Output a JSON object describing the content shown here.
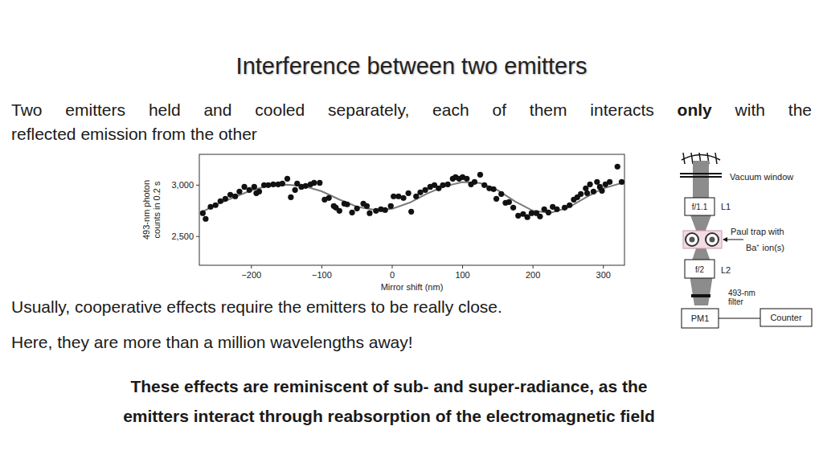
{
  "slide": {
    "title": "Interference between two emitters",
    "intro": [
      {
        "text": "Two emitters held and cooled separately, each of them interacts ",
        "bold": "only",
        "after": " with the"
      },
      {
        "text": "reflected emission from the other"
      }
    ],
    "notes": [
      "Usually, cooperative effects require the emitters to be really close.",
      "Here, they are more than a million wavelengths away!"
    ],
    "conclusion": [
      "These effects are reminiscent of sub- and super-radiance, as the",
      "emitters interact through reabsorption of the electromagnetic field"
    ]
  },
  "diagram": {
    "vacuum_window": "Vacuum window",
    "lens1": {
      "focal": "f/1.1",
      "name": "L1"
    },
    "trap": [
      "Paul trap with",
      "Ba⁺ ion(s)"
    ],
    "lens2": {
      "focal": "f/2",
      "name": "L2"
    },
    "filter": [
      "493-nm",
      "filter"
    ],
    "detector": "PM1",
    "counter": "Counter"
  },
  "chart_data": {
    "type": "scatter",
    "xlabel": "Mirror shift (nm)",
    "ylabel": "493-nm photon counts in 0.2 s",
    "xlim": [
      -274,
      330
    ],
    "ylim": [
      2220,
      3300
    ],
    "xticks": [
      -200,
      -100,
      0,
      100,
      200,
      300
    ],
    "yticks": [
      {
        "value": 2500,
        "label": "2,500"
      },
      {
        "value": 3000,
        "label": "3,000"
      }
    ],
    "grid": false,
    "series": [
      {
        "type": "scatter",
        "color": "#111111",
        "marker": "circle",
        "x": [
          -269,
          -265,
          -258,
          -251,
          -244,
          -237,
          -230,
          -223,
          -217,
          -210,
          -203,
          -196,
          -193,
          -189,
          -182,
          -176,
          -169,
          -162,
          -156,
          -149,
          -144,
          -138,
          -135,
          -129,
          -123,
          -116,
          -111,
          -103,
          -96,
          -90,
          -83,
          -80,
          -75,
          -68,
          -64,
          -57,
          -50,
          -41,
          -36,
          -32,
          -23,
          -16,
          -10,
          -2,
          2,
          9,
          16,
          23,
          27,
          34,
          40,
          47,
          54,
          60,
          66,
          72,
          79,
          86,
          90,
          95,
          100,
          106,
          112,
          117,
          125,
          131,
          138,
          144,
          148,
          155,
          161,
          166,
          172,
          179,
          186,
          192,
          198,
          205,
          210,
          216,
          222,
          228,
          234,
          245,
          252,
          258,
          263,
          268,
          275,
          277,
          281,
          286,
          291,
          295,
          298,
          303,
          309,
          320,
          326
        ],
        "values": [
          2727,
          2672,
          2789,
          2805,
          2844,
          2867,
          2906,
          2891,
          2938,
          2984,
          2953,
          2984,
          2922,
          2938,
          3000,
          3000,
          3008,
          3008,
          3016,
          3063,
          2883,
          2953,
          3016,
          2984,
          2992,
          3008,
          3023,
          3023,
          2859,
          2875,
          2797,
          2781,
          2750,
          2820,
          2813,
          2734,
          2773,
          2820,
          2797,
          2727,
          2750,
          2766,
          2758,
          2797,
          2891,
          2891,
          2875,
          2922,
          2742,
          2891,
          2930,
          2953,
          2984,
          3000,
          2969,
          3000,
          3008,
          3063,
          3078,
          3063,
          3078,
          3063,
          3008,
          3031,
          3102,
          3000,
          2969,
          2961,
          2867,
          2914,
          2828,
          2836,
          2781,
          2703,
          2719,
          2688,
          2727,
          2727,
          2695,
          2766,
          2734,
          2789,
          2766,
          2781,
          2805,
          2859,
          2883,
          2914,
          2969,
          2922,
          3008,
          2938,
          3031,
          2984,
          2945,
          3008,
          3031,
          3180,
          3031
        ]
      },
      {
        "type": "line",
        "color": "#7a7a7a",
        "line_style": "solid",
        "x": [
          -270,
          -250,
          -225,
          -200,
          -175,
          -150,
          -125,
          -100,
          -75,
          -50,
          -25,
          0,
          25,
          50,
          75,
          100,
          125,
          150,
          175,
          200,
          225,
          250,
          275,
          300,
          326
        ],
        "values": [
          2740,
          2810,
          2880,
          2950,
          2995,
          3005,
          2990,
          2940,
          2860,
          2790,
          2760,
          2770,
          2830,
          2920,
          2990,
          3030,
          3020,
          2950,
          2840,
          2750,
          2730,
          2780,
          2880,
          2970,
          3020
        ]
      }
    ]
  }
}
